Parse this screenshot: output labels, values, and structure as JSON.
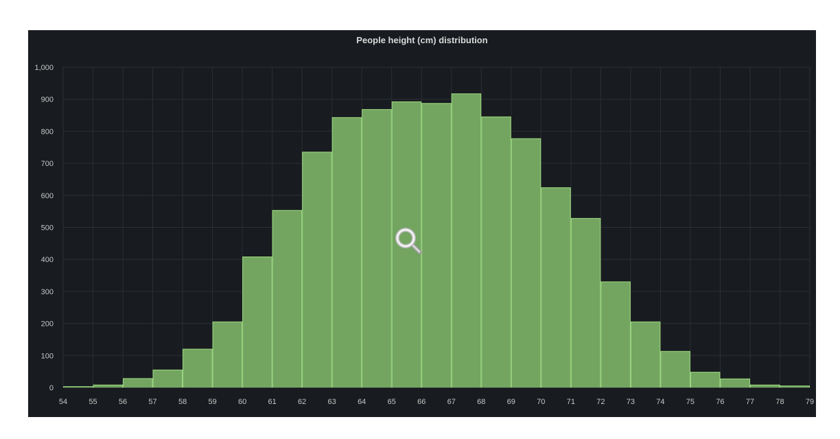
{
  "chart_data": {
    "type": "bar",
    "title": "People height (cm) distribution",
    "xlabel": "",
    "ylabel": "",
    "x_ticks": [
      "54",
      "55",
      "56",
      "57",
      "58",
      "59",
      "60",
      "61",
      "62",
      "63",
      "64",
      "65",
      "66",
      "67",
      "68",
      "69",
      "70",
      "71",
      "72",
      "73",
      "74",
      "75",
      "76",
      "77",
      "78",
      "79"
    ],
    "y_ticks": [
      "0",
      "100",
      "200",
      "300",
      "400",
      "500",
      "600",
      "700",
      "800",
      "900",
      "1,000"
    ],
    "bins": [
      {
        "from": 54,
        "to": 55,
        "value": 3
      },
      {
        "from": 55,
        "to": 56,
        "value": 8
      },
      {
        "from": 56,
        "to": 57,
        "value": 28
      },
      {
        "from": 57,
        "to": 58,
        "value": 55
      },
      {
        "from": 58,
        "to": 59,
        "value": 120
      },
      {
        "from": 59,
        "to": 60,
        "value": 205
      },
      {
        "from": 60,
        "to": 61,
        "value": 408
      },
      {
        "from": 61,
        "to": 62,
        "value": 553
      },
      {
        "from": 62,
        "to": 63,
        "value": 735
      },
      {
        "from": 63,
        "to": 64,
        "value": 843
      },
      {
        "from": 64,
        "to": 65,
        "value": 868
      },
      {
        "from": 65,
        "to": 66,
        "value": 892
      },
      {
        "from": 66,
        "to": 67,
        "value": 887
      },
      {
        "from": 67,
        "to": 68,
        "value": 917
      },
      {
        "from": 68,
        "to": 69,
        "value": 845
      },
      {
        "from": 69,
        "to": 70,
        "value": 777
      },
      {
        "from": 70,
        "to": 71,
        "value": 624
      },
      {
        "from": 71,
        "to": 72,
        "value": 528
      },
      {
        "from": 72,
        "to": 73,
        "value": 330
      },
      {
        "from": 73,
        "to": 74,
        "value": 205
      },
      {
        "from": 74,
        "to": 75,
        "value": 113
      },
      {
        "from": 75,
        "to": 76,
        "value": 48
      },
      {
        "from": 76,
        "to": 77,
        "value": 27
      },
      {
        "from": 77,
        "to": 78,
        "value": 8
      },
      {
        "from": 78,
        "to": 79,
        "value": 5
      }
    ],
    "xlim": [
      54,
      79
    ],
    "ylim": [
      0,
      1000
    ],
    "grid": true,
    "colors": {
      "panel_background": "#181b1f",
      "bar_fill": "#73a561",
      "bar_stroke": "#9fdb82",
      "grid": "#2c2f33",
      "text": "#c7c7c7",
      "title": "#d8d9da"
    }
  },
  "overlay": {
    "icon": "magnifier-icon"
  }
}
